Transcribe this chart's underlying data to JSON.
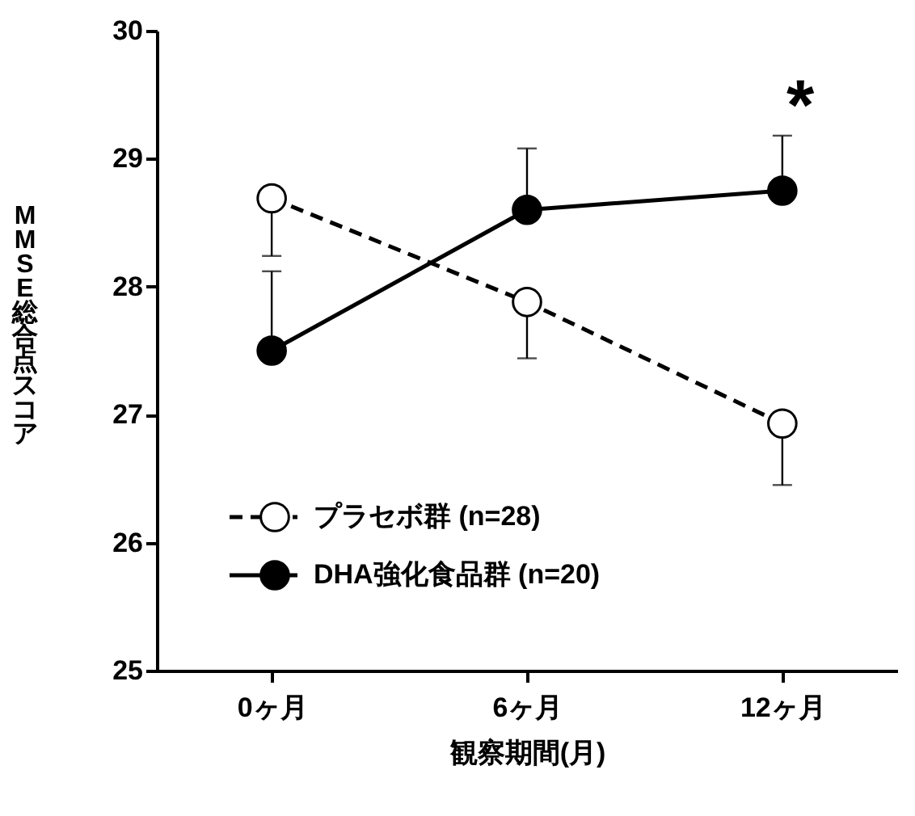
{
  "chart_data": {
    "type": "line",
    "xlabel": "観察期間(月)",
    "ylabel": "MMSE総合点スコア",
    "categories": [
      "0ヶ月",
      "6ヶ月",
      "12ヶ月"
    ],
    "series": [
      {
        "name": "プラセボ群 (n=28)",
        "color": "#000000",
        "line_style": "dashed",
        "values": [
          28.69,
          27.88,
          26.93
        ],
        "errors": [
          [
            28.24,
            28.69
          ],
          [
            27.44,
            27.88
          ],
          [
            26.45,
            26.93
          ]
        ]
      },
      {
        "name": "DHA強化食品群 (n=20)",
        "color": "#000000",
        "line_style": "solid",
        "values": [
          27.5,
          28.6,
          28.75
        ],
        "errors": [
          [
            27.5,
            28.12
          ],
          [
            28.6,
            29.08
          ],
          [
            28.75,
            29.18
          ]
        ]
      }
    ],
    "ylim": [
      25,
      30
    ],
    "yticks": [
      25,
      26,
      27,
      28,
      29,
      30
    ],
    "marker": "circle",
    "grid": false,
    "legend": "bottom left",
    "annotations": [
      "*"
    ]
  }
}
